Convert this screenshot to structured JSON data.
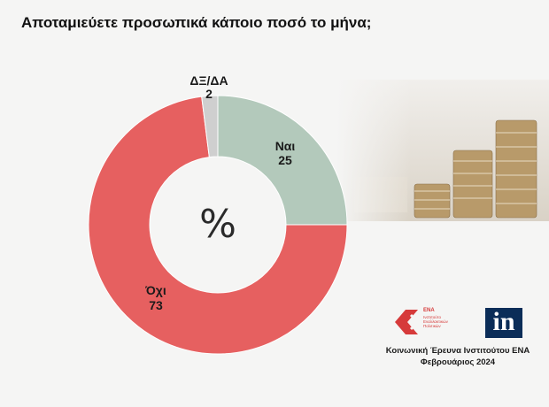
{
  "page": {
    "title": "Αποταμιεύετε προσωπικά κάποιο ποσό το μήνα;"
  },
  "chart_data": {
    "type": "pie",
    "donut": true,
    "center_label": "%",
    "categories": [
      "Ναι",
      "Όχι",
      "ΔΞ/ΔΑ"
    ],
    "values": [
      25,
      73,
      2
    ],
    "colors": [
      "#b3c9bb",
      "#e66060",
      "#cfcfcf"
    ]
  },
  "footer": {
    "logo_ena_label": "ΕΝΑ",
    "logo_ena_subtitle": "Ινστιτούτο Εναλλακτικών Πολιτικών",
    "logo_in_text": "in",
    "source_line1": "Κοινωνική Έρευνα Ινστιτούτου ΕΝΑ",
    "source_line2": "Φεβρουάριος 2024"
  }
}
